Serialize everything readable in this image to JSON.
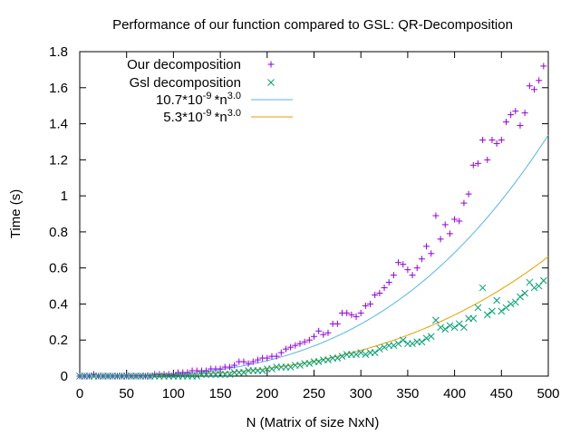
{
  "chart_data": {
    "type": "scatter",
    "title": "Performance of our function compared to GSL: QR-Decomposition",
    "xlabel": "N (Matrix of size NxN)",
    "ylabel": "Time (s)",
    "xlim": [
      0,
      500
    ],
    "ylim": [
      0,
      1.8
    ],
    "xticks": [
      0,
      50,
      100,
      150,
      200,
      250,
      300,
      350,
      400,
      450,
      500
    ],
    "yticks": [
      0,
      0.2,
      0.4,
      0.6,
      0.8,
      1,
      1.2,
      1.4,
      1.6,
      1.8
    ],
    "legend_position": "top-left",
    "series": [
      {
        "name": "Our decomposition",
        "kind": "points",
        "marker": "plus",
        "color": "#9400d3",
        "x": [
          0,
          5,
          10,
          15,
          20,
          25,
          30,
          35,
          40,
          45,
          50,
          55,
          60,
          65,
          70,
          75,
          80,
          85,
          90,
          95,
          100,
          105,
          110,
          115,
          120,
          125,
          130,
          135,
          140,
          145,
          150,
          155,
          160,
          165,
          170,
          175,
          180,
          185,
          190,
          195,
          200,
          205,
          210,
          215,
          220,
          225,
          230,
          235,
          240,
          245,
          250,
          255,
          260,
          265,
          270,
          275,
          280,
          285,
          290,
          295,
          300,
          305,
          310,
          315,
          320,
          325,
          330,
          335,
          340,
          345,
          350,
          355,
          360,
          365,
          370,
          375,
          380,
          385,
          390,
          395,
          400,
          405,
          410,
          415,
          420,
          425,
          430,
          435,
          440,
          445,
          450,
          455,
          460,
          465,
          470,
          475,
          480,
          485,
          490,
          495
        ],
        "y": [
          0.0,
          0.0,
          0.0,
          0.01,
          0.0,
          0.0,
          0.0,
          0.0,
          0.0,
          0.0,
          0.0,
          0.0,
          0.0,
          0.0,
          0.0,
          0.0,
          0.01,
          0.01,
          0.01,
          0.01,
          0.01,
          0.02,
          0.02,
          0.02,
          0.03,
          0.03,
          0.03,
          0.03,
          0.04,
          0.04,
          0.04,
          0.05,
          0.05,
          0.06,
          0.08,
          0.08,
          0.07,
          0.08,
          0.09,
          0.1,
          0.1,
          0.11,
          0.11,
          0.13,
          0.15,
          0.16,
          0.17,
          0.18,
          0.19,
          0.2,
          0.22,
          0.25,
          0.23,
          0.24,
          0.29,
          0.29,
          0.35,
          0.35,
          0.34,
          0.33,
          0.35,
          0.39,
          0.4,
          0.45,
          0.46,
          0.49,
          0.52,
          0.56,
          0.63,
          0.62,
          0.59,
          0.56,
          0.6,
          0.65,
          0.72,
          0.68,
          0.89,
          0.76,
          0.84,
          0.79,
          0.87,
          0.86,
          0.96,
          1.01,
          1.17,
          1.18,
          1.31,
          1.2,
          1.31,
          1.29,
          1.31,
          1.41,
          1.45,
          1.47,
          1.39,
          1.46,
          1.61,
          1.59,
          1.64,
          1.72
        ]
      },
      {
        "name": "Gsl decomposition",
        "kind": "points",
        "marker": "cross",
        "color": "#009e73",
        "x": [
          0,
          5,
          10,
          15,
          20,
          25,
          30,
          35,
          40,
          45,
          50,
          55,
          60,
          65,
          70,
          75,
          80,
          85,
          90,
          95,
          100,
          105,
          110,
          115,
          120,
          125,
          130,
          135,
          140,
          145,
          150,
          155,
          160,
          165,
          170,
          175,
          180,
          185,
          190,
          195,
          200,
          205,
          210,
          215,
          220,
          225,
          230,
          235,
          240,
          245,
          250,
          255,
          260,
          265,
          270,
          275,
          280,
          285,
          290,
          295,
          300,
          305,
          310,
          315,
          320,
          325,
          330,
          335,
          340,
          345,
          350,
          355,
          360,
          365,
          370,
          375,
          380,
          385,
          390,
          395,
          400,
          405,
          410,
          415,
          420,
          425,
          430,
          435,
          440,
          445,
          450,
          455,
          460,
          465,
          470,
          475,
          480,
          485,
          490,
          495
        ],
        "y": [
          0.0,
          0.0,
          0.0,
          0.0,
          0.0,
          0.0,
          0.0,
          0.0,
          0.0,
          0.0,
          0.0,
          0.0,
          0.0,
          0.0,
          0.0,
          0.0,
          0.0,
          0.0,
          0.0,
          0.0,
          0.0,
          0.0,
          0.0,
          0.0,
          0.0,
          0.0,
          0.01,
          0.01,
          0.01,
          0.01,
          0.01,
          0.01,
          0.01,
          0.02,
          0.02,
          0.02,
          0.03,
          0.03,
          0.03,
          0.03,
          0.04,
          0.04,
          0.05,
          0.05,
          0.05,
          0.05,
          0.06,
          0.06,
          0.07,
          0.07,
          0.08,
          0.08,
          0.09,
          0.09,
          0.1,
          0.1,
          0.11,
          0.12,
          0.12,
          0.12,
          0.13,
          0.12,
          0.13,
          0.13,
          0.15,
          0.16,
          0.17,
          0.17,
          0.18,
          0.2,
          0.18,
          0.18,
          0.19,
          0.19,
          0.21,
          0.22,
          0.31,
          0.27,
          0.26,
          0.28,
          0.27,
          0.29,
          0.27,
          0.32,
          0.32,
          0.38,
          0.49,
          0.34,
          0.36,
          0.42,
          0.36,
          0.38,
          0.4,
          0.41,
          0.44,
          0.46,
          0.52,
          0.49,
          0.5,
          0.53
        ]
      },
      {
        "name": "10.7*10",
        "exp1": "-9",
        "mid": "*n",
        "exp2": "3.0",
        "kind": "line",
        "color": "#56b4e9",
        "coef": 1.07e-08,
        "power": 3.0
      },
      {
        "name": "5.3*10",
        "exp1": "-9",
        "mid": "*n",
        "exp2": "3.0",
        "kind": "line",
        "color": "#e69f00",
        "coef": 5.3e-09,
        "power": 3.0
      }
    ]
  }
}
